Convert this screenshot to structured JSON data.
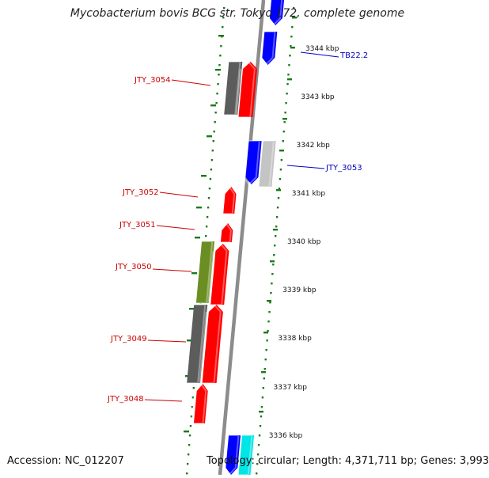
{
  "title": "Mycobacterium bovis BCG str. Tokyo 172, complete genome",
  "footer": {
    "accession": "Accession: NC_012207",
    "topology": "Topology: circular; Length: 4,371,711 bp; Genes: 3,993"
  },
  "colors": {
    "backbone": "#8c8c8c",
    "forward_gene": "#ff0000",
    "reverse_gene": "#0000ff",
    "gray_gene": "#5c5c5c",
    "light_gray_gene": "#c4c4c4",
    "olive_gene": "#6b8e23",
    "cyan_gene": "#00e5e5",
    "gc_ticks": "#1a7a1a",
    "label_red": "#cc0000",
    "label_blue": "#0000bb"
  },
  "kbp_ticks": [
    "3344 kbp",
    "3343 kbp",
    "3342 kbp",
    "3341 kbp",
    "3340 kbp",
    "3339 kbp",
    "3338 kbp",
    "3337 kbp",
    "3336 kbp"
  ],
  "gene_labels_left": [
    "JTY_3054",
    "JTY_3052",
    "JTY_3051",
    "JTY_3050",
    "JTY_3049",
    "JTY_3048"
  ],
  "gene_labels_right": [
    "TB22.2",
    "JTY_3053"
  ]
}
